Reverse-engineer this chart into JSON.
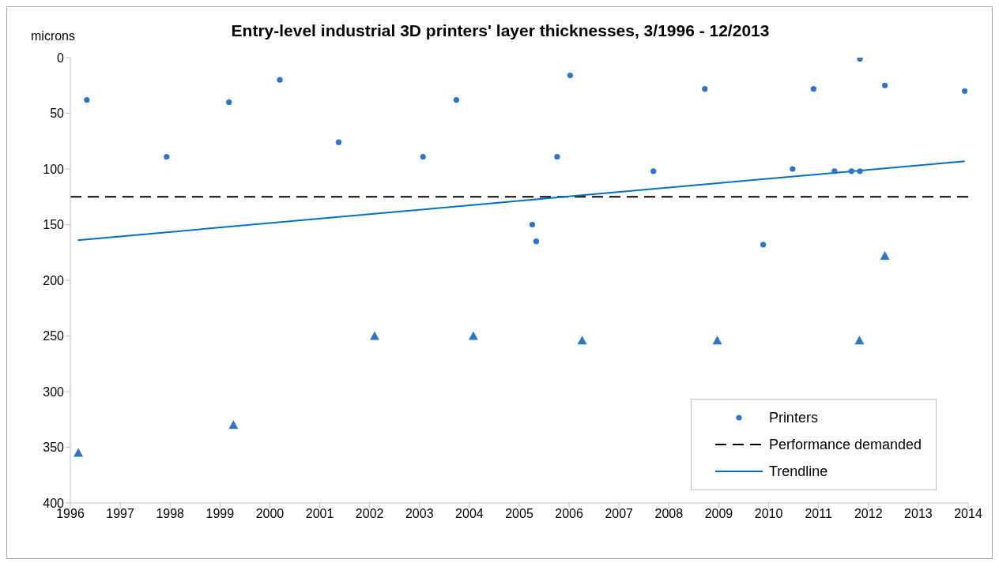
{
  "chart_data": {
    "type": "scatter",
    "title": "Entry-level industrial 3D printers' layer thicknesses, 3/1996 - 12/2013",
    "ylabel": "microns",
    "xlim": [
      1996,
      2014
    ],
    "xticks": [
      1996,
      1997,
      1998,
      1999,
      2000,
      2001,
      2002,
      2003,
      2004,
      2005,
      2006,
      2007,
      2008,
      2009,
      2010,
      2011,
      2012,
      2013,
      2014
    ],
    "ylim": [
      400,
      0
    ],
    "yticks": [
      0,
      50,
      100,
      150,
      200,
      250,
      300,
      350,
      400
    ],
    "grid": false,
    "legend": "bottom right",
    "series": [
      {
        "name": "Printers",
        "marker": "circle",
        "color": "#2e75c6",
        "x": [
          1996.33,
          1997.93,
          1999.18,
          2000.2,
          2001.38,
          2003.07,
          2003.74,
          2005.26,
          2005.34,
          2005.76,
          2006.02,
          2007.69,
          2008.72,
          2009.89,
          2010.48,
          2010.9,
          2011.32,
          2011.66,
          2011.83,
          2011.83,
          2012.33,
          2013.93
        ],
        "values": [
          38,
          89,
          40,
          20,
          76,
          89,
          38,
          150,
          165,
          89,
          16,
          102,
          28,
          168,
          100,
          28,
          102,
          102,
          102,
          1,
          25,
          30
        ]
      },
      {
        "marker": "triangle",
        "color": "#2e75c6",
        "x": [
          1996.16,
          1999.27,
          2002.1,
          2004.08,
          2006.26,
          2008.97,
          2011.82,
          2012.33
        ],
        "values": [
          355,
          330,
          250,
          250,
          254,
          254,
          254,
          178
        ]
      },
      {
        "name": "Trendline",
        "type": "line",
        "marker": "none",
        "color": "#0070c0",
        "x": [
          1996.15,
          2013.93
        ],
        "values": [
          164,
          93
        ]
      }
    ],
    "ref_lines": [
      {
        "axis": "y",
        "value": 125,
        "label": "Performance demanded",
        "color": "#000000",
        "line_style": "dashed"
      }
    ]
  }
}
